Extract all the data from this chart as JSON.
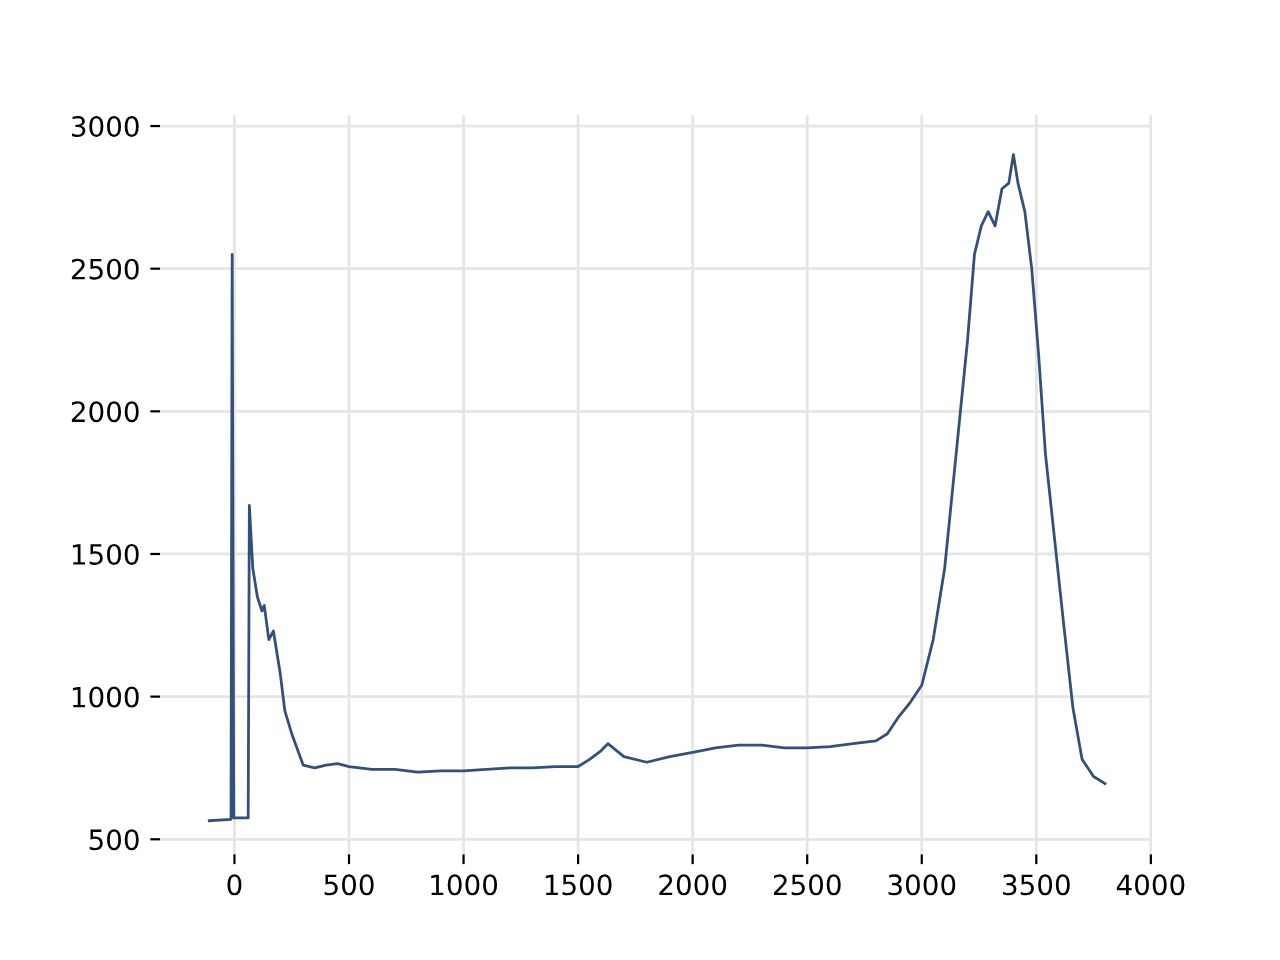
{
  "chart_data": {
    "type": "line",
    "xlim": [
      -325,
      4005
    ],
    "ylim": [
      447,
      3038
    ],
    "xticks": [
      0,
      500,
      1000,
      1500,
      2000,
      2500,
      3000,
      3500,
      4000
    ],
    "yticks": [
      500,
      1000,
      1500,
      2000,
      2500,
      3000
    ],
    "grid": true,
    "x": [
      -110,
      -15,
      -10,
      -3,
      60,
      65,
      80,
      100,
      120,
      130,
      150,
      170,
      200,
      220,
      250,
      300,
      350,
      400,
      450,
      500,
      600,
      700,
      800,
      900,
      1000,
      1100,
      1200,
      1300,
      1400,
      1500,
      1550,
      1600,
      1630,
      1700,
      1800,
      1900,
      2000,
      2100,
      2200,
      2300,
      2400,
      2500,
      2600,
      2700,
      2800,
      2850,
      2900,
      2950,
      3000,
      3050,
      3100,
      3150,
      3200,
      3230,
      3260,
      3290,
      3320,
      3350,
      3380,
      3400,
      3420,
      3450,
      3480,
      3510,
      3540,
      3580,
      3620,
      3660,
      3700,
      3750,
      3800
    ],
    "series": [
      {
        "color": "#34507a",
        "values": [
          565,
          570,
          2550,
          575,
          575,
          1670,
          1450,
          1350,
          1300,
          1320,
          1200,
          1230,
          1080,
          950,
          870,
          760,
          750,
          760,
          765,
          755,
          745,
          745,
          735,
          740,
          740,
          745,
          750,
          750,
          755,
          755,
          780,
          810,
          835,
          790,
          770,
          790,
          805,
          820,
          830,
          830,
          820,
          820,
          825,
          835,
          845,
          870,
          930,
          980,
          1040,
          1200,
          1450,
          1850,
          2250,
          2550,
          2650,
          2700,
          2650,
          2780,
          2800,
          2900,
          2800,
          2700,
          2500,
          2200,
          1850,
          1550,
          1250,
          960,
          780,
          720,
          695
        ]
      }
    ]
  }
}
